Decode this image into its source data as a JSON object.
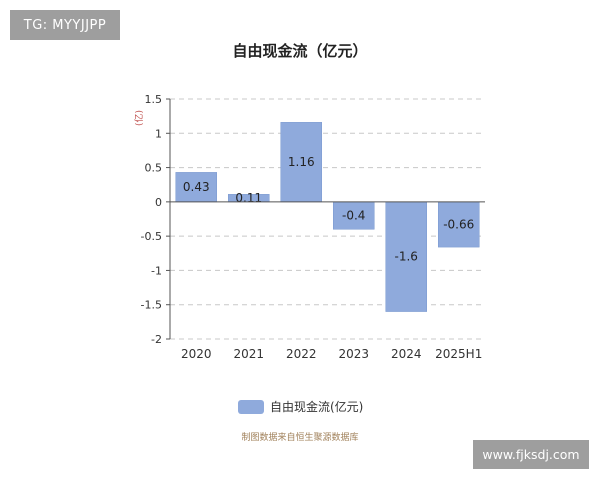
{
  "watermark_top": "TG: MYYJJPP",
  "watermark_bottom": "www.fjksdj.com",
  "source_note": "制图数据来自恒生聚源数据库",
  "colors": {
    "bar": "#8faadc",
    "bar_stroke": "#7a98cf",
    "grid": "#c8c8c8",
    "unit": "#c0504d"
  },
  "chart_data": {
    "type": "bar",
    "title": "自由现金流（亿元）",
    "ylabel": "(亿)",
    "categories": [
      "2020",
      "2021",
      "2022",
      "2023",
      "2024",
      "2025H1"
    ],
    "series": [
      {
        "name": "自由现金流(亿元)",
        "values": [
          0.43,
          0.11,
          1.16,
          -0.4,
          -1.6,
          -0.66
        ]
      }
    ],
    "ylim": [
      -2,
      1.5
    ],
    "yticks": [
      1.5,
      1,
      0.5,
      0,
      -0.5,
      -1,
      -1.5,
      -2
    ],
    "ytick_labels": [
      "1.5",
      "1",
      "0.5",
      "0",
      "-0.5",
      "-1",
      "-1.5",
      "-2"
    ],
    "data_labels": [
      "0.43",
      "0.11",
      "1.16",
      "-0.4",
      "-1.6",
      "-0.66"
    ],
    "grid": true,
    "legend_position": "bottom"
  }
}
